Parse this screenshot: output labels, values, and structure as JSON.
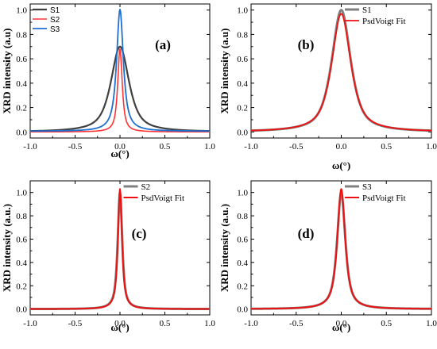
{
  "chart_data": [
    {
      "type": "line",
      "panel_label": "(a)",
      "xlabel": "ω(°)",
      "ylabel": "XRD intensity (a.u)",
      "xlim": [
        -1.0,
        1.0
      ],
      "ylim": [
        -0.05,
        1.05
      ],
      "xticks": [
        "-1.0",
        "-0.5",
        "0.0",
        "0.5",
        "1.0"
      ],
      "yticks": [
        "0.0",
        "0.2",
        "0.4",
        "0.6",
        "0.8",
        "1.0"
      ],
      "legend_position": "top-left",
      "legend_font": "sans",
      "series": [
        {
          "name": "S1",
          "color": "#404040",
          "width": 2.2,
          "profile": {
            "center": 0.0,
            "amp": 0.7,
            "fwhm": 0.24,
            "eta": 0.75,
            "baseline": 0.0
          }
        },
        {
          "name": "S2",
          "color": "#ff3333",
          "width": 1.6,
          "profile": {
            "center": 0.0,
            "amp": 0.68,
            "fwhm": 0.06,
            "eta": 0.85,
            "baseline": 0.0
          }
        },
        {
          "name": "S3",
          "color": "#1f6fd1",
          "width": 1.8,
          "profile": {
            "center": 0.0,
            "amp": 1.0,
            "fwhm": 0.09,
            "eta": 0.9,
            "baseline": 0.005
          }
        }
      ]
    },
    {
      "type": "line",
      "panel_label": "(b)",
      "xlabel": "ω(°)",
      "ylabel": "XRD intensity (a.u)",
      "xlim": [
        -1.0,
        1.0
      ],
      "ylim": [
        -0.05,
        1.05
      ],
      "xticks": [
        "-1.0",
        "-0.5",
        "0.0",
        "0.5",
        "1.0"
      ],
      "yticks": [
        "0.0",
        "0.2",
        "0.4",
        "0.6",
        "0.8",
        "1.0"
      ],
      "legend_position": "top-right",
      "legend_font": "serif",
      "series": [
        {
          "name": "S1",
          "color": "#808080",
          "width": 3.0,
          "profile": {
            "center": 0.0,
            "amp": 1.0,
            "fwhm": 0.25,
            "eta": 0.7,
            "baseline": 0.0
          }
        },
        {
          "name": "PsdVoigt Fit",
          "color": "#ee1111",
          "width": 1.8,
          "profile": {
            "center": 0.0,
            "amp": 0.97,
            "fwhm": 0.25,
            "eta": 0.75,
            "baseline": 0.0
          }
        }
      ]
    },
    {
      "type": "line",
      "panel_label": "(c)",
      "xlabel": "ω(°)",
      "ylabel": "XRD intensity (a.u.)",
      "xlim": [
        -1.0,
        1.0
      ],
      "ylim": [
        -0.05,
        1.1
      ],
      "xticks": [
        "-1.0",
        "-0.5",
        "0.0",
        "0.5",
        "1.0"
      ],
      "yticks": [
        "0.0",
        "0.2",
        "0.4",
        "0.6",
        "0.8",
        "1.0"
      ],
      "legend_position": "top-right",
      "legend_font": "serif",
      "series": [
        {
          "name": "S2",
          "color": "#808080",
          "width": 3.0,
          "profile": {
            "center": 0.0,
            "amp": 1.0,
            "fwhm": 0.06,
            "eta": 0.8,
            "baseline": 0.0
          }
        },
        {
          "name": "PsdVoigt Fit",
          "color": "#ee1111",
          "width": 2.0,
          "profile": {
            "center": 0.0,
            "amp": 1.03,
            "fwhm": 0.055,
            "eta": 0.85,
            "baseline": 0.0
          }
        }
      ]
    },
    {
      "type": "line",
      "panel_label": "(d)",
      "xlabel": "ω(°)",
      "ylabel": "XRD intensity (a.u.)",
      "xlim": [
        -1.0,
        1.0
      ],
      "ylim": [
        -0.05,
        1.1
      ],
      "xticks": [
        "-1.0",
        "-0.5",
        "0.0",
        "0.5",
        "1.0"
      ],
      "yticks": [
        "0.0",
        "0.2",
        "0.4",
        "0.6",
        "0.8",
        "1.0"
      ],
      "legend_position": "top-right",
      "legend_font": "serif",
      "series": [
        {
          "name": "S3",
          "color": "#808080",
          "width": 3.0,
          "profile": {
            "center": 0.0,
            "amp": 1.0,
            "fwhm": 0.11,
            "eta": 0.8,
            "baseline": 0.0
          }
        },
        {
          "name": "PsdVoigt Fit",
          "color": "#ee1111",
          "width": 2.0,
          "profile": {
            "center": 0.0,
            "amp": 1.03,
            "fwhm": 0.105,
            "eta": 0.85,
            "baseline": 0.0
          }
        }
      ]
    }
  ]
}
